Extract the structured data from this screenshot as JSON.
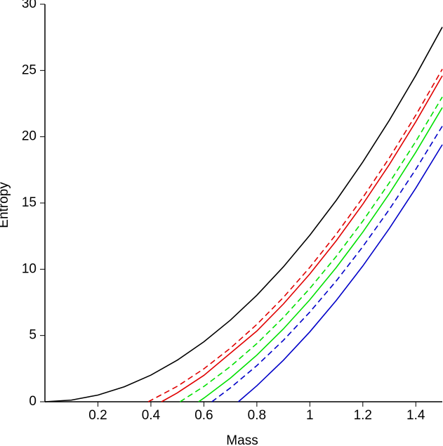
{
  "chart_data": {
    "type": "line",
    "x_label": "Mass",
    "y_label": "Entropy",
    "xlim": [
      0,
      1.5
    ],
    "ylim": [
      0,
      30
    ],
    "xticks": [
      0.2,
      0.4,
      0.6,
      0.8,
      1,
      1.2,
      1.4
    ],
    "yticks": [
      0,
      5,
      10,
      15,
      20,
      25,
      30
    ],
    "series": [
      {
        "color": "#000000",
        "dashed": false,
        "x": [
          0,
          0.1,
          0.2,
          0.3,
          0.4,
          0.5,
          0.6,
          0.7,
          0.8,
          0.9,
          1.0,
          1.1,
          1.2,
          1.3,
          1.4,
          1.5
        ],
        "values": [
          0,
          0.126,
          0.503,
          1.131,
          2.011,
          3.142,
          4.524,
          6.158,
          8.042,
          10.179,
          12.566,
          15.205,
          18.096,
          21.237,
          24.63,
          28.274
        ]
      },
      {
        "color": "#e00000",
        "dashed": true,
        "x": [
          0.39,
          0.5,
          0.6,
          0.7,
          0.8,
          0.9,
          1.0,
          1.1,
          1.2,
          1.3,
          1.4,
          1.5
        ],
        "values": [
          0,
          1.171,
          2.487,
          4.043,
          5.837,
          7.871,
          10.144,
          12.657,
          15.409,
          18.4,
          21.63,
          25.1
        ]
      },
      {
        "color": "#e00000",
        "dashed": false,
        "x": [
          0.44,
          0.5,
          0.6,
          0.7,
          0.8,
          0.9,
          1.0,
          1.1,
          1.2,
          1.3,
          1.4,
          1.5
        ],
        "values": [
          0,
          0.675,
          1.991,
          3.665,
          5.34,
          7.374,
          9.647,
          12.159,
          14.911,
          17.901,
          21.131,
          24.6
        ]
      },
      {
        "color": "#00e000",
        "dashed": true,
        "x": [
          0.51,
          0.6,
          0.7,
          0.8,
          0.9,
          1.0,
          1.1,
          1.2,
          1.3,
          1.4,
          1.5
        ],
        "values": [
          0,
          1.155,
          2.657,
          4.391,
          6.356,
          8.552,
          10.979,
          13.637,
          16.527,
          19.648,
          23.0
        ]
      },
      {
        "color": "#00e000",
        "dashed": false,
        "x": [
          0.58,
          0.6,
          0.7,
          0.8,
          0.9,
          1.0,
          1.1,
          1.2,
          1.3,
          1.4,
          1.5
        ],
        "values": [
          0,
          0.274,
          1.782,
          3.522,
          5.494,
          7.698,
          10.135,
          12.803,
          15.703,
          18.835,
          22.2
        ]
      },
      {
        "color": "#0000c8",
        "dashed": true,
        "x": [
          0.63,
          0.7,
          0.8,
          0.9,
          1.0,
          1.1,
          1.2,
          1.3,
          1.4,
          1.5
        ],
        "values": [
          0,
          1.045,
          2.729,
          4.637,
          6.769,
          9.126,
          11.708,
          14.514,
          17.544,
          20.8
        ]
      },
      {
        "color": "#0000c8",
        "dashed": false,
        "x": [
          0.73,
          0.8,
          0.9,
          1.0,
          1.1,
          1.2,
          1.3,
          1.4,
          1.5
        ],
        "values": [
          0,
          1.21,
          3.131,
          5.277,
          7.65,
          10.248,
          13.073,
          16.124,
          19.4
        ]
      }
    ]
  }
}
